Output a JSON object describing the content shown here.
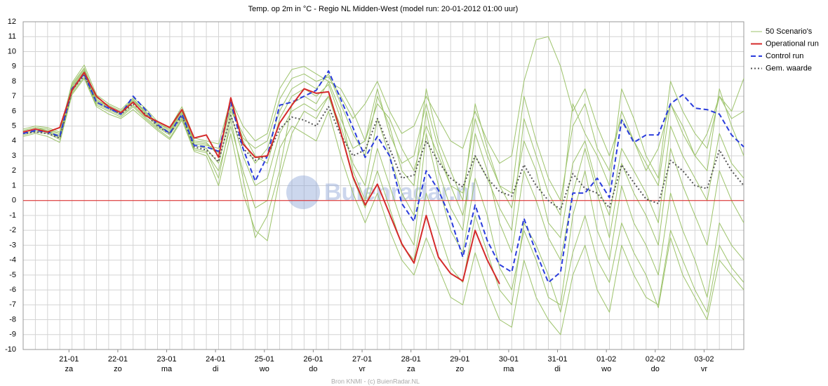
{
  "chart_data": {
    "type": "line",
    "title": "Temp. op 2m in °C - Regio NL Midden-West (model run: 20-01-2012 01:00 uur)",
    "footer": "Bron KNMI - (c) BuienRadar.NL",
    "watermark": "Buienradar.nl",
    "x": [
      0,
      1,
      2,
      3,
      4,
      5,
      6,
      7,
      8,
      9,
      10,
      11,
      12,
      13,
      14,
      15,
      16,
      17,
      18,
      19,
      20,
      21,
      22,
      23,
      24,
      25,
      26,
      27,
      28,
      29,
      30,
      31,
      32,
      33,
      34,
      35,
      36,
      37,
      38,
      39,
      40,
      41,
      42,
      43,
      44,
      45,
      46,
      47,
      48,
      49,
      50,
      51,
      52,
      53,
      54,
      55,
      56,
      57,
      58,
      59
    ],
    "xlim": [
      0,
      59
    ],
    "xticks": [
      {
        "value": 3.75,
        "label": "21-01"
      },
      {
        "value": 7.75,
        "label": "22-01"
      },
      {
        "value": 11.75,
        "label": "23-01"
      },
      {
        "value": 15.75,
        "label": "24-01"
      },
      {
        "value": 19.75,
        "label": "25-01"
      },
      {
        "value": 23.75,
        "label": "26-01"
      },
      {
        "value": 27.75,
        "label": "27-01"
      },
      {
        "value": 31.75,
        "label": "28-01"
      },
      {
        "value": 35.75,
        "label": "29-01"
      },
      {
        "value": 39.75,
        "label": "30-01"
      },
      {
        "value": 43.75,
        "label": "31-01"
      },
      {
        "value": 47.75,
        "label": "01-02"
      },
      {
        "value": 51.75,
        "label": "02-02"
      },
      {
        "value": 55.75,
        "label": "03-02"
      }
    ],
    "xtick_sublabels": [
      "za",
      "zo",
      "ma",
      "di",
      "wo",
      "do",
      "vr",
      "za",
      "zo",
      "ma",
      "di",
      "wo",
      "do",
      "vr"
    ],
    "ylim": [
      -10,
      12
    ],
    "yticks": [
      -10,
      -9,
      -8,
      -7,
      -6,
      -5,
      -4,
      -3,
      -2,
      -1,
      0,
      1,
      2,
      3,
      4,
      5,
      6,
      7,
      8,
      9,
      10,
      11,
      12
    ],
    "grid": true,
    "zero_line_color": "#e02020",
    "legend": "right",
    "series": [
      {
        "name": "50 Scenario's",
        "color": "#9dc36b",
        "dash": "solid",
        "members": [
          [
            4.7,
            4.9,
            4.8,
            4.5,
            7.8,
            8.9,
            6.9,
            6.4,
            6.0,
            6.8,
            6.0,
            5.2,
            4.8,
            6.0,
            4.0,
            3.9,
            3.0,
            6.2,
            4.2,
            3.5,
            4.0,
            6.8,
            8.2,
            8.5,
            8.0,
            8.3,
            7.0,
            5.5,
            6.5,
            8.0,
            6.0,
            4.5,
            5.0,
            7.0,
            5.5,
            4.0,
            3.5,
            6.0,
            4.0,
            2.5,
            3.0,
            8.0,
            10.8,
            11.0,
            9.0,
            6.0,
            7.5,
            5.0,
            3.0,
            5.5,
            4.0,
            2.0,
            3.5,
            6.5,
            5.0,
            3.0,
            4.5,
            7.0,
            5.5,
            6.0
          ],
          [
            4.4,
            4.6,
            4.5,
            4.1,
            7.2,
            8.3,
            6.4,
            6.0,
            5.6,
            6.3,
            5.5,
            4.8,
            4.2,
            5.5,
            3.4,
            3.2,
            2.0,
            5.0,
            2.0,
            -0.5,
            0.0,
            3.5,
            5.0,
            4.5,
            4.0,
            6.0,
            3.0,
            0.5,
            -1.5,
            0.5,
            -2.0,
            -4.0,
            -5.0,
            -2.5,
            -4.5,
            -6.5,
            -7.0,
            -3.5,
            -6.0,
            -8.0,
            -8.5,
            -4.0,
            -6.5,
            -8.0,
            -9.0,
            -5.0,
            -3.0,
            -6.0,
            -7.5,
            -3.0,
            -5.0,
            -6.5,
            -7.0,
            -2.0,
            -4.0,
            -6.0,
            -7.5,
            -3.0,
            -4.5,
            -5.5
          ],
          [
            4.6,
            4.8,
            4.6,
            4.4,
            7.6,
            8.7,
            6.7,
            6.3,
            5.9,
            6.7,
            5.9,
            5.1,
            4.6,
            5.9,
            3.8,
            3.7,
            3.5,
            6.0,
            4.5,
            3.0,
            2.5,
            5.5,
            7.0,
            7.5,
            7.0,
            7.8,
            5.5,
            3.5,
            4.0,
            7.5,
            4.5,
            2.5,
            3.0,
            6.5,
            3.5,
            1.0,
            0.5,
            5.5,
            3.0,
            1.0,
            -0.5,
            4.0,
            2.0,
            -1.5,
            -2.5,
            2.5,
            4.0,
            1.0,
            -1.0,
            3.5,
            2.0,
            0.5,
            -1.5,
            5.0,
            3.0,
            1.5,
            0.0,
            4.5,
            2.5,
            1.5
          ],
          [
            4.5,
            4.7,
            4.6,
            4.2,
            7.3,
            8.5,
            6.5,
            6.1,
            5.7,
            6.4,
            5.6,
            4.9,
            4.4,
            5.6,
            3.5,
            3.3,
            1.5,
            5.5,
            1.5,
            -2.5,
            -1.0,
            2.0,
            6.5,
            7.0,
            6.5,
            8.0,
            6.0,
            2.0,
            0.0,
            3.5,
            1.0,
            -1.5,
            -3.0,
            4.5,
            1.0,
            -2.0,
            -3.5,
            1.5,
            -1.0,
            -4.5,
            -6.0,
            -2.0,
            -4.0,
            -6.5,
            -7.0,
            -1.0,
            2.0,
            -2.0,
            -4.0,
            1.0,
            -1.5,
            -3.0,
            -5.0,
            0.5,
            -2.0,
            -4.0,
            -6.5,
            -1.5,
            -3.0,
            -4.0
          ],
          [
            4.8,
            5.0,
            4.9,
            4.6,
            7.9,
            9.1,
            7.1,
            6.5,
            6.1,
            6.9,
            6.2,
            5.3,
            4.9,
            6.3,
            4.2,
            4.0,
            3.8,
            6.8,
            5.0,
            4.0,
            4.5,
            7.5,
            8.8,
            9.0,
            8.5,
            8.0,
            7.5,
            6.0,
            4.0,
            6.5,
            5.5,
            3.5,
            2.0,
            5.0,
            3.0,
            1.0,
            -1.0,
            3.0,
            1.5,
            -0.5,
            -2.0,
            5.5,
            3.0,
            0.5,
            -1.0,
            6.5,
            4.5,
            3.0,
            1.0,
            7.5,
            5.5,
            3.0,
            1.5,
            8.0,
            6.0,
            4.5,
            3.5,
            7.0,
            6.0,
            8.2
          ],
          [
            4.3,
            4.5,
            4.3,
            3.9,
            7.1,
            8.2,
            6.3,
            5.8,
            5.5,
            6.1,
            5.4,
            4.7,
            4.1,
            5.4,
            3.3,
            3.0,
            1.0,
            4.5,
            0.5,
            -2.0,
            -2.7,
            1.5,
            4.5,
            6.0,
            5.5,
            7.0,
            4.5,
            1.5,
            -0.5,
            2.0,
            -0.5,
            -3.0,
            -4.0,
            0.5,
            -2.0,
            -4.5,
            -5.5,
            -1.0,
            -3.5,
            -6.0,
            -7.0,
            -1.5,
            -3.0,
            -5.0,
            -7.5,
            -3.5,
            -1.0,
            -4.0,
            -5.5,
            -1.5,
            -3.5,
            -5.0,
            -7.2,
            -2.5,
            -5.0,
            -6.5,
            -8.0,
            -4.0,
            -5.0,
            -6.0
          ],
          [
            4.6,
            4.8,
            4.7,
            4.3,
            7.5,
            8.6,
            6.6,
            6.2,
            5.8,
            6.6,
            5.8,
            5.0,
            4.5,
            5.8,
            3.7,
            3.5,
            2.5,
            5.8,
            3.0,
            1.0,
            1.5,
            4.5,
            6.0,
            6.5,
            6.0,
            7.0,
            5.0,
            2.5,
            1.0,
            5.5,
            3.0,
            0.5,
            -1.0,
            6.0,
            2.0,
            -0.5,
            -2.0,
            4.5,
            2.0,
            -1.5,
            -3.5,
            2.0,
            0.0,
            -2.5,
            -4.0,
            0.5,
            3.5,
            0.5,
            -2.5,
            2.5,
            0.5,
            -1.0,
            -3.0,
            3.5,
            1.0,
            -1.0,
            -3.0,
            2.0,
            0.0,
            -1.5
          ],
          [
            4.7,
            4.9,
            4.7,
            4.5,
            7.7,
            8.8,
            6.8,
            6.3,
            5.9,
            6.8,
            5.9,
            5.2,
            4.7,
            6.0,
            3.9,
            3.8,
            3.2,
            6.5,
            4.0,
            2.5,
            3.5,
            6.0,
            7.5,
            8.0,
            7.5,
            8.5,
            6.5,
            4.5,
            3.0,
            7.0,
            5.0,
            2.0,
            1.0,
            7.5,
            4.0,
            2.0,
            0.0,
            6.5,
            3.5,
            1.0,
            0.5,
            7.0,
            4.0,
            1.5,
            0.0,
            5.0,
            6.5,
            3.5,
            2.0,
            6.0,
            4.0,
            2.5,
            1.0,
            6.5,
            4.5,
            3.0,
            2.0,
            7.5,
            5.0,
            3.0
          ]
        ]
      },
      {
        "name": "Operational run",
        "color": "#d42a2a",
        "dash": "solid",
        "values": [
          4.6,
          4.8,
          4.6,
          4.9,
          7.4,
          8.6,
          7.0,
          6.3,
          5.9,
          6.6,
          5.7,
          5.3,
          4.9,
          6.1,
          4.2,
          4.4,
          2.9,
          6.9,
          3.8,
          2.9,
          3.0,
          5.2,
          6.4,
          7.5,
          7.2,
          7.3,
          4.6,
          1.6,
          -0.3,
          1.1,
          -0.9,
          -2.9,
          -4.2,
          -1.0,
          -3.8,
          -4.9,
          -5.4,
          -2.0,
          -4.0,
          -5.6,
          null,
          null,
          null,
          null,
          null,
          null,
          null,
          null,
          null,
          null,
          null,
          null,
          null,
          null,
          null,
          null,
          null,
          null,
          null,
          null
        ]
      },
      {
        "name": "Control run",
        "color": "#2a3cdc",
        "dash": "dashed",
        "values": [
          4.5,
          4.7,
          4.6,
          4.3,
          7.5,
          8.5,
          6.6,
          6.2,
          5.8,
          7.0,
          6.1,
          5.1,
          4.5,
          5.8,
          3.7,
          3.6,
          3.3,
          6.6,
          3.5,
          1.3,
          3.0,
          6.4,
          6.6,
          7.0,
          7.4,
          8.7,
          6.8,
          4.9,
          2.9,
          4.3,
          3.0,
          -0.2,
          -1.4,
          2.0,
          0.7,
          -1.2,
          -3.8,
          -0.3,
          -2.7,
          -4.3,
          -4.8,
          -1.2,
          -3.5,
          -5.5,
          -4.8,
          0.5,
          0.5,
          1.5,
          0.2,
          5.4,
          3.9,
          4.4,
          4.4,
          6.5,
          7.1,
          6.2,
          6.1,
          5.8,
          4.4,
          3.6
        ]
      },
      {
        "name": "Gem. waarde",
        "color": "#555555",
        "dash": "dotted",
        "values": [
          4.5,
          4.6,
          4.5,
          4.2,
          7.4,
          8.4,
          6.6,
          6.2,
          5.8,
          6.5,
          5.8,
          5.0,
          4.5,
          5.7,
          3.6,
          3.4,
          2.6,
          5.7,
          3.5,
          2.7,
          3.0,
          4.8,
          5.6,
          5.4,
          5.0,
          6.3,
          4.4,
          3.0,
          3.4,
          5.5,
          3.5,
          1.5,
          1.7,
          4.0,
          2.6,
          1.5,
          0.9,
          3.0,
          1.5,
          0.6,
          0.3,
          2.4,
          1.0,
          0.0,
          -0.6,
          1.8,
          0.8,
          0.5,
          -0.5,
          2.4,
          1.2,
          0.1,
          -0.2,
          2.7,
          2.0,
          1.0,
          0.8,
          3.4,
          2.0,
          1.0
        ]
      }
    ]
  }
}
